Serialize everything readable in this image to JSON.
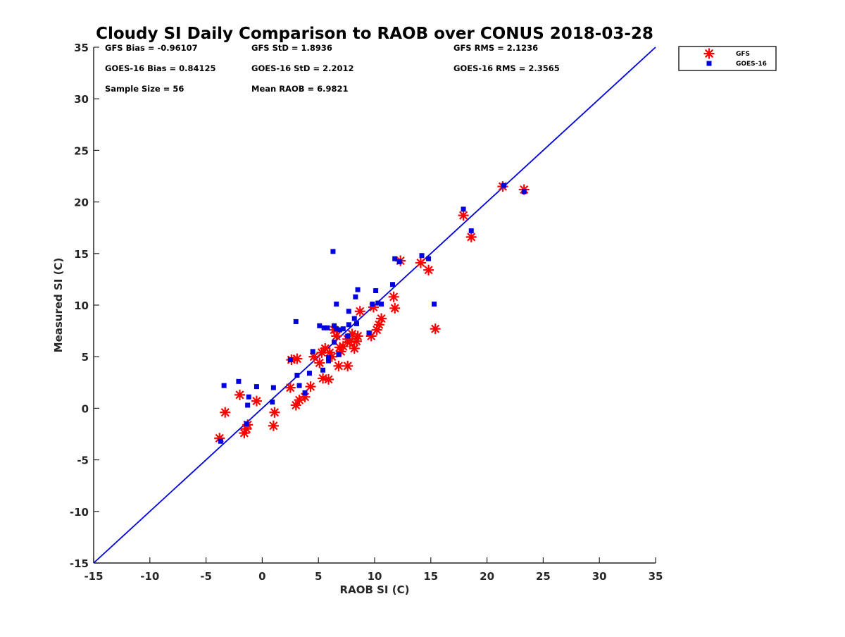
{
  "chart_data": {
    "type": "scatter",
    "title": "Cloudy SI Daily Comparison to RAOB over CONUS 2018-03-28",
    "xlabel": "RAOB SI (C)",
    "ylabel": "Measured SI (C)",
    "xlim": [
      -15,
      35
    ],
    "ylim": [
      -15,
      35
    ],
    "xticks": [
      -15,
      -10,
      -5,
      0,
      5,
      10,
      15,
      20,
      25,
      30,
      35
    ],
    "yticks": [
      -15,
      -10,
      -5,
      0,
      5,
      10,
      15,
      20,
      25,
      30,
      35
    ],
    "grid": false,
    "legend_position": "top-right",
    "reference_line": {
      "x": [
        -15,
        35
      ],
      "y": [
        -15,
        35
      ],
      "color": "#0000dd"
    },
    "stats": [
      "GFS Bias = -0.96107",
      "GFS StD = 1.8936",
      "GFS RMS = 2.1236",
      "GOES-16 Bias = 0.84125",
      "GOES-16 StD = 2.2012",
      "GOES-16 RMS = 2.3565",
      "Sample Size = 56",
      "Mean RAOB = 6.9821"
    ],
    "series": [
      {
        "name": "GFS",
        "marker": "asterisk",
        "color": "#ff0000",
        "points": [
          [
            -3.8,
            -2.9
          ],
          [
            -3.3,
            -0.4
          ],
          [
            -2.0,
            1.3
          ],
          [
            -1.6,
            -2.4
          ],
          [
            -1.4,
            -2.0
          ],
          [
            -1.3,
            -1.6
          ],
          [
            -0.5,
            0.7
          ],
          [
            1.0,
            -1.7
          ],
          [
            1.1,
            -0.4
          ],
          [
            2.5,
            2.0
          ],
          [
            2.6,
            4.7
          ],
          [
            3.0,
            0.3
          ],
          [
            3.1,
            4.8
          ],
          [
            3.3,
            0.8
          ],
          [
            3.8,
            1.1
          ],
          [
            4.3,
            2.1
          ],
          [
            4.6,
            5.0
          ],
          [
            5.1,
            4.4
          ],
          [
            5.3,
            5.4
          ],
          [
            5.4,
            2.9
          ],
          [
            5.6,
            5.8
          ],
          [
            5.9,
            2.8
          ],
          [
            6.0,
            5.4
          ],
          [
            6.2,
            5.0
          ],
          [
            6.4,
            7.6
          ],
          [
            6.6,
            7.0
          ],
          [
            6.8,
            4.1
          ],
          [
            6.9,
            5.9
          ],
          [
            7.0,
            5.5
          ],
          [
            7.2,
            6.0
          ],
          [
            7.6,
            4.1
          ],
          [
            7.6,
            6.7
          ],
          [
            7.8,
            6.4
          ],
          [
            8.0,
            7.2
          ],
          [
            8.2,
            5.8
          ],
          [
            8.4,
            6.5
          ],
          [
            8.5,
            7.0
          ],
          [
            8.7,
            9.4
          ],
          [
            9.7,
            7.0
          ],
          [
            9.9,
            9.8
          ],
          [
            10.2,
            7.6
          ],
          [
            10.4,
            8.1
          ],
          [
            10.6,
            8.7
          ],
          [
            11.7,
            10.8
          ],
          [
            11.8,
            9.7
          ],
          [
            12.3,
            14.3
          ],
          [
            14.1,
            14.1
          ],
          [
            14.8,
            13.4
          ],
          [
            15.4,
            7.7
          ],
          [
            17.9,
            18.7
          ],
          [
            18.6,
            16.6
          ],
          [
            21.4,
            21.5
          ],
          [
            23.3,
            21.2
          ]
        ]
      },
      {
        "name": "GOES-16",
        "marker": "square",
        "color": "#0000dd",
        "points": [
          [
            -3.7,
            -3.2
          ],
          [
            -3.4,
            2.2
          ],
          [
            -2.1,
            2.6
          ],
          [
            -1.3,
            0.3
          ],
          [
            -1.2,
            1.1
          ],
          [
            -1.4,
            -1.5
          ],
          [
            -0.5,
            2.1
          ],
          [
            0.9,
            0.6
          ],
          [
            1.0,
            2.0
          ],
          [
            2.5,
            4.7
          ],
          [
            3.0,
            8.4
          ],
          [
            3.1,
            3.2
          ],
          [
            3.3,
            2.2
          ],
          [
            3.8,
            1.5
          ],
          [
            4.2,
            3.4
          ],
          [
            4.5,
            5.5
          ],
          [
            5.1,
            8.0
          ],
          [
            5.4,
            3.7
          ],
          [
            5.5,
            7.8
          ],
          [
            5.8,
            7.8
          ],
          [
            5.9,
            4.6
          ],
          [
            5.9,
            4.9
          ],
          [
            6.3,
            15.2
          ],
          [
            6.4,
            6.4
          ],
          [
            6.4,
            8.0
          ],
          [
            6.6,
            7.7
          ],
          [
            6.6,
            10.1
          ],
          [
            6.8,
            5.2
          ],
          [
            6.9,
            7.6
          ],
          [
            7.2,
            7.7
          ],
          [
            7.6,
            7.0
          ],
          [
            7.7,
            8.1
          ],
          [
            7.7,
            9.4
          ],
          [
            8.2,
            8.7
          ],
          [
            8.3,
            10.8
          ],
          [
            8.5,
            11.5
          ],
          [
            8.4,
            8.2
          ],
          [
            9.5,
            7.3
          ],
          [
            9.8,
            10.1
          ],
          [
            10.1,
            11.4
          ],
          [
            10.3,
            10.2
          ],
          [
            10.6,
            10.1
          ],
          [
            11.6,
            12.0
          ],
          [
            11.8,
            14.5
          ],
          [
            12.2,
            14.2
          ],
          [
            14.2,
            14.8
          ],
          [
            14.8,
            14.5
          ],
          [
            15.3,
            10.1
          ],
          [
            17.9,
            19.3
          ],
          [
            18.6,
            17.2
          ],
          [
            21.5,
            21.6
          ],
          [
            23.3,
            21.0
          ]
        ]
      }
    ]
  }
}
